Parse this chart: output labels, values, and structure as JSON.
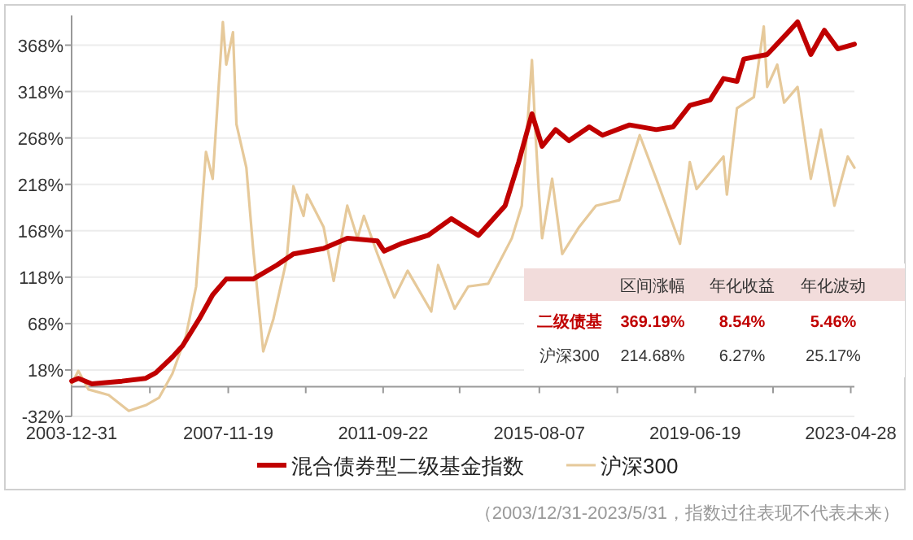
{
  "chart_data": {
    "type": "line",
    "xlim": [
      "2003-12-31",
      "2023-05-31"
    ],
    "xticks": [
      {
        "value": "2003-12-31",
        "label": "2003-12-31"
      },
      {
        "value": "2005-12-09",
        "label": null
      },
      {
        "value": "2007-11-19",
        "label": "2007-11-19"
      },
      {
        "value": "2009-10-21",
        "label": null
      },
      {
        "value": "2011-09-22",
        "label": "2011-09-22"
      },
      {
        "value": "2013-08-15",
        "label": null
      },
      {
        "value": "2015-08-07",
        "label": "2015-08-07"
      },
      {
        "value": "2017-07-13",
        "label": null
      },
      {
        "value": "2019-06-19",
        "label": "2019-06-19"
      },
      {
        "value": "2021-05-24",
        "label": null
      },
      {
        "value": "2023-04-28",
        "label": "2023-04-28"
      }
    ],
    "ylim": [
      -32,
      400
    ],
    "yticks": [
      {
        "value": -32,
        "label": "-32%"
      },
      {
        "value": 18,
        "label": "18%"
      },
      {
        "value": 68,
        "label": "68%"
      },
      {
        "value": 118,
        "label": "118%"
      },
      {
        "value": 168,
        "label": "168%"
      },
      {
        "value": 218,
        "label": "218%"
      },
      {
        "value": 268,
        "label": "268%"
      },
      {
        "value": 318,
        "label": "318%"
      },
      {
        "value": 368,
        "label": "368%"
      }
    ],
    "grid": "y",
    "legend": "bottom",
    "series": [
      {
        "name": "沪深300",
        "color": "#e6c99a",
        "x": [
          "2004-01",
          "2004-03",
          "2004-06",
          "2004-12",
          "2005-06",
          "2005-11",
          "2006-03",
          "2006-07",
          "2006-11",
          "2007-02",
          "2007-05",
          "2007-07",
          "2007-10",
          "2007-11",
          "2008-01",
          "2008-02",
          "2008-05",
          "2008-07",
          "2008-10",
          "2009-01",
          "2009-05",
          "2009-07",
          "2009-10",
          "2009-11",
          "2010-04",
          "2010-07",
          "2010-11",
          "2011-02",
          "2011-04",
          "2011-08",
          "2012-01",
          "2012-05",
          "2012-12",
          "2013-02",
          "2013-07",
          "2013-11",
          "2014-05",
          "2014-12",
          "2015-03",
          "2015-06",
          "2015-07",
          "2015-08",
          "2015-09",
          "2015-12",
          "2016-03",
          "2016-08",
          "2017-01",
          "2017-08",
          "2018-02",
          "2018-07",
          "2019-02",
          "2019-05",
          "2019-07",
          "2020-03",
          "2020-04",
          "2020-07",
          "2020-12",
          "2021-03",
          "2021-04",
          "2021-07",
          "2021-09",
          "2022-01",
          "2022-05",
          "2022-08",
          "2022-12",
          "2023-04",
          "2023-05-31"
        ],
        "values": [
          3,
          17,
          -3,
          -9,
          -26,
          -20,
          -12,
          14,
          55,
          108,
          253,
          224,
          393,
          347,
          382,
          283,
          236,
          149,
          38,
          73,
          137,
          216,
          184,
          207,
          172,
          114,
          195,
          160,
          184,
          143,
          96,
          125,
          81,
          131,
          84,
          108,
          111,
          160,
          195,
          352,
          277,
          213,
          160,
          224,
          143,
          172,
          195,
          201,
          271,
          224,
          154,
          242,
          213,
          248,
          207,
          300,
          312,
          388,
          323,
          347,
          306,
          323,
          224,
          277,
          195,
          248,
          236
        ]
      },
      {
        "name": "混合债券型二级基金指数",
        "color": "#c00000",
        "x": [
          "2004-01",
          "2004-03",
          "2004-07",
          "2005-04",
          "2005-11",
          "2006-02",
          "2006-07",
          "2006-10",
          "2007-03",
          "2007-07",
          "2007-11",
          "2008-07",
          "2009-02",
          "2009-07",
          "2010-04",
          "2010-11",
          "2011-08",
          "2011-10",
          "2012-03",
          "2012-11",
          "2013-06",
          "2013-10",
          "2014-02",
          "2014-10",
          "2015-02",
          "2015-06",
          "2015-09",
          "2016-01",
          "2016-05",
          "2016-11",
          "2017-03",
          "2017-11",
          "2018-07",
          "2018-12",
          "2019-05",
          "2019-11",
          "2020-03",
          "2020-07",
          "2020-09",
          "2021-04",
          "2021-10",
          "2022-01",
          "2022-05",
          "2022-09",
          "2023-01",
          "2023-05-31"
        ],
        "values": [
          6,
          9,
          3,
          6,
          9,
          15,
          32,
          44,
          73,
          99,
          116,
          116,
          131,
          143,
          149,
          160,
          157,
          146,
          154,
          163,
          181,
          172,
          163,
          195,
          242,
          294,
          259,
          277,
          265,
          280,
          271,
          282,
          277,
          280,
          303,
          309,
          332,
          329,
          353,
          358,
          381,
          393,
          358,
          384,
          364,
          369
        ]
      }
    ],
    "annotations": [
      "（2003/12/31-2023/5/31，指数过往表现不代表未来）",
      "区间涨幅",
      "年化收益",
      "年化波动",
      "二级债基",
      "369.19%",
      "8.54%",
      "5.46%",
      "沪深300",
      "214.68%",
      "6.27%",
      "25.17%"
    ]
  }
}
